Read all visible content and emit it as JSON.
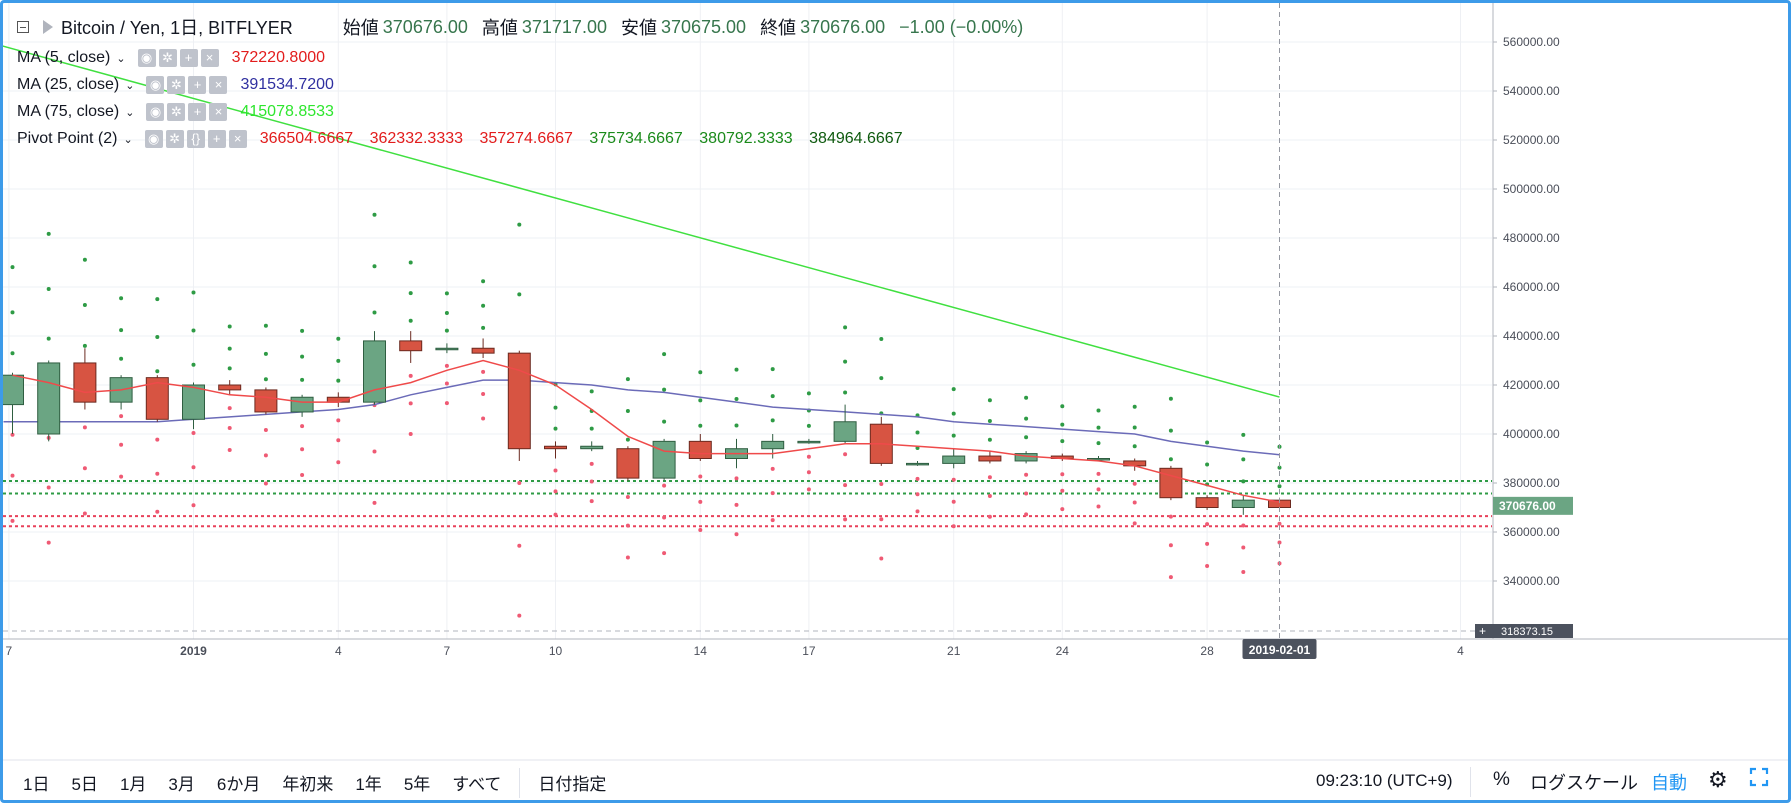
{
  "header": {
    "symbol": "Bitcoin / Yen, 1日, BITFLYER",
    "open_label": "始値",
    "open": "370676.00",
    "high_label": "高値",
    "high": "371717.00",
    "low_label": "安値",
    "low": "370675.00",
    "close_label": "終値",
    "close": "370676.00",
    "change": "−1.00 (−0.00%)"
  },
  "indicators": [
    {
      "name": "MA (5, close)",
      "values": [
        "372220.8000"
      ],
      "colors": [
        "#e21c1c"
      ]
    },
    {
      "name": "MA (25, close)",
      "values": [
        "391534.7200"
      ],
      "colors": [
        "#2f2fa0"
      ]
    },
    {
      "name": "MA (75, close)",
      "values": [
        "415078.8533"
      ],
      "colors": [
        "#2ee62e"
      ]
    },
    {
      "name": "Pivot Point (2)",
      "values": [
        "366504.6667",
        "362332.3333",
        "357274.6667",
        "375734.6667",
        "380792.3333",
        "384964.6667"
      ],
      "colors": [
        "#e21c1c",
        "#e21c1c",
        "#e21c1c",
        "#1a8a1a",
        "#1a8a1a",
        "#0e5a0e"
      ]
    }
  ],
  "chart_data": {
    "type": "candlestick",
    "y_axis_ticks": [
      "560000.00",
      "540000.00",
      "520000.00",
      "500000.00",
      "480000.00",
      "460000.00",
      "440000.00",
      "420000.00",
      "400000.00",
      "380000.00",
      "360000.00",
      "340000.00"
    ],
    "ylim": [
      318373.15,
      567000
    ],
    "x_ticks": [
      "7",
      "2019",
      "4",
      "7",
      "10",
      "14",
      "17",
      "21",
      "24",
      "28",
      "4"
    ],
    "current_price_label": "370676.00",
    "axis_min_label": "318373.15",
    "crosshair_date": "2019-02-01",
    "candles": [
      {
        "date": "2018-12-28",
        "o": 412000,
        "h": 425000,
        "l": 400000,
        "c": 424000
      },
      {
        "date": "2018-12-29",
        "o": 400000,
        "h": 430000,
        "l": 397000,
        "c": 429000
      },
      {
        "date": "2018-12-30",
        "o": 429000,
        "h": 435000,
        "l": 410000,
        "c": 413000
      },
      {
        "date": "2018-12-31",
        "o": 413000,
        "h": 424000,
        "l": 410000,
        "c": 423000
      },
      {
        "date": "2019-01-01",
        "o": 423000,
        "h": 424000,
        "l": 405000,
        "c": 406000
      },
      {
        "date": "2019-01-02",
        "o": 406000,
        "h": 421000,
        "l": 402000,
        "c": 420000
      },
      {
        "date": "2019-01-03",
        "o": 420000,
        "h": 422000,
        "l": 416000,
        "c": 418000
      },
      {
        "date": "2019-01-04",
        "o": 418000,
        "h": 419000,
        "l": 408000,
        "c": 409000
      },
      {
        "date": "2019-01-05",
        "o": 409000,
        "h": 416000,
        "l": 407000,
        "c": 415000
      },
      {
        "date": "2019-01-06",
        "o": 415000,
        "h": 417000,
        "l": 411000,
        "c": 413000
      },
      {
        "date": "2019-01-07",
        "o": 413000,
        "h": 442000,
        "l": 412000,
        "c": 438000
      },
      {
        "date": "2019-01-08",
        "o": 438000,
        "h": 442000,
        "l": 429000,
        "c": 434000
      },
      {
        "date": "2019-01-09",
        "o": 435000,
        "h": 437000,
        "l": 433000,
        "c": 435000
      },
      {
        "date": "2019-01-10",
        "o": 435000,
        "h": 439000,
        "l": 431000,
        "c": 433000
      },
      {
        "date": "2019-01-11",
        "o": 433000,
        "h": 434000,
        "l": 389000,
        "c": 394000
      },
      {
        "date": "2019-01-12",
        "o": 395000,
        "h": 397000,
        "l": 390000,
        "c": 394000
      },
      {
        "date": "2019-01-13",
        "o": 394000,
        "h": 397000,
        "l": 393000,
        "c": 395000
      },
      {
        "date": "2019-01-14",
        "o": 394000,
        "h": 395000,
        "l": 381000,
        "c": 382000
      },
      {
        "date": "2019-01-15",
        "o": 382000,
        "h": 398000,
        "l": 381000,
        "c": 397000
      },
      {
        "date": "2019-01-16",
        "o": 397000,
        "h": 400000,
        "l": 389000,
        "c": 390000
      },
      {
        "date": "2019-01-17",
        "o": 390000,
        "h": 398000,
        "l": 386000,
        "c": 394000
      },
      {
        "date": "2019-01-18",
        "o": 394000,
        "h": 400000,
        "l": 390000,
        "c": 397000
      },
      {
        "date": "2019-01-19",
        "o": 397000,
        "h": 398000,
        "l": 396000,
        "c": 397000
      },
      {
        "date": "2019-01-20",
        "o": 397000,
        "h": 412000,
        "l": 396000,
        "c": 405000
      },
      {
        "date": "2019-01-21",
        "o": 404000,
        "h": 407000,
        "l": 387000,
        "c": 388000
      },
      {
        "date": "2019-01-22",
        "o": 388000,
        "h": 389000,
        "l": 387000,
        "c": 388000
      },
      {
        "date": "2019-01-23",
        "o": 388000,
        "h": 394000,
        "l": 386000,
        "c": 391000
      },
      {
        "date": "2019-01-24",
        "o": 391000,
        "h": 393000,
        "l": 388000,
        "c": 389000
      },
      {
        "date": "2019-01-25",
        "o": 389000,
        "h": 393000,
        "l": 388000,
        "c": 392000
      },
      {
        "date": "2019-01-26",
        "o": 391000,
        "h": 392000,
        "l": 389000,
        "c": 390000
      },
      {
        "date": "2019-01-27",
        "o": 390000,
        "h": 391000,
        "l": 389000,
        "c": 390000
      },
      {
        "date": "2019-01-28",
        "o": 389000,
        "h": 390000,
        "l": 385000,
        "c": 387000
      },
      {
        "date": "2019-01-29",
        "o": 386000,
        "h": 387000,
        "l": 373000,
        "c": 374000
      },
      {
        "date": "2019-01-30",
        "o": 374000,
        "h": 375000,
        "l": 369000,
        "c": 370000
      },
      {
        "date": "2019-01-31",
        "o": 370000,
        "h": 375000,
        "l": 367000,
        "c": 373000
      },
      {
        "date": "2019-02-01",
        "o": 373000,
        "h": 374000,
        "l": 369000,
        "c": 370000
      }
    ],
    "ma5": [
      424000,
      421000,
      417000,
      418000,
      421000,
      419000,
      416000,
      415000,
      413000,
      413000,
      418000,
      421000,
      426000,
      430000,
      426000,
      420000,
      410000,
      399000,
      393000,
      392000,
      392000,
      392000,
      394000,
      396000,
      396000,
      395000,
      394000,
      393000,
      391000,
      390000,
      389000,
      387000,
      383000,
      379000,
      375000,
      372220.8
    ],
    "ma25": [
      null,
      null,
      405000,
      405000,
      405000,
      406000,
      407000,
      408000,
      409000,
      410000,
      412000,
      416000,
      419000,
      422000,
      422000,
      421000,
      420000,
      418000,
      417000,
      415000,
      413000,
      411000,
      410000,
      409000,
      408000,
      407000,
      405000,
      404000,
      403000,
      402000,
      401000,
      400000,
      397000,
      395000,
      393000,
      391534.72
    ],
    "ma75_line": {
      "start": [
        -1,
        562000
      ],
      "end": [
        35,
        415078.8533
      ]
    },
    "pivot_levels": {
      "R3": 384964.6667,
      "R2": 380792.3333,
      "R1": 375734.6667,
      "P": 366504.6667,
      "S1": 362332.3333,
      "S2": 357274.6667
    },
    "up_color": "#6ba583",
    "down_color": "#d75442"
  },
  "bottom_bar": {
    "ranges": [
      "1日",
      "5日",
      "1月",
      "3月",
      "6か月",
      "年初来",
      "1年",
      "5年",
      "すべて"
    ],
    "date_goto": "日付指定",
    "time": "09:23:10 (UTC+9)",
    "percent": "%",
    "log_scale": "ログスケール",
    "auto": "自動"
  }
}
